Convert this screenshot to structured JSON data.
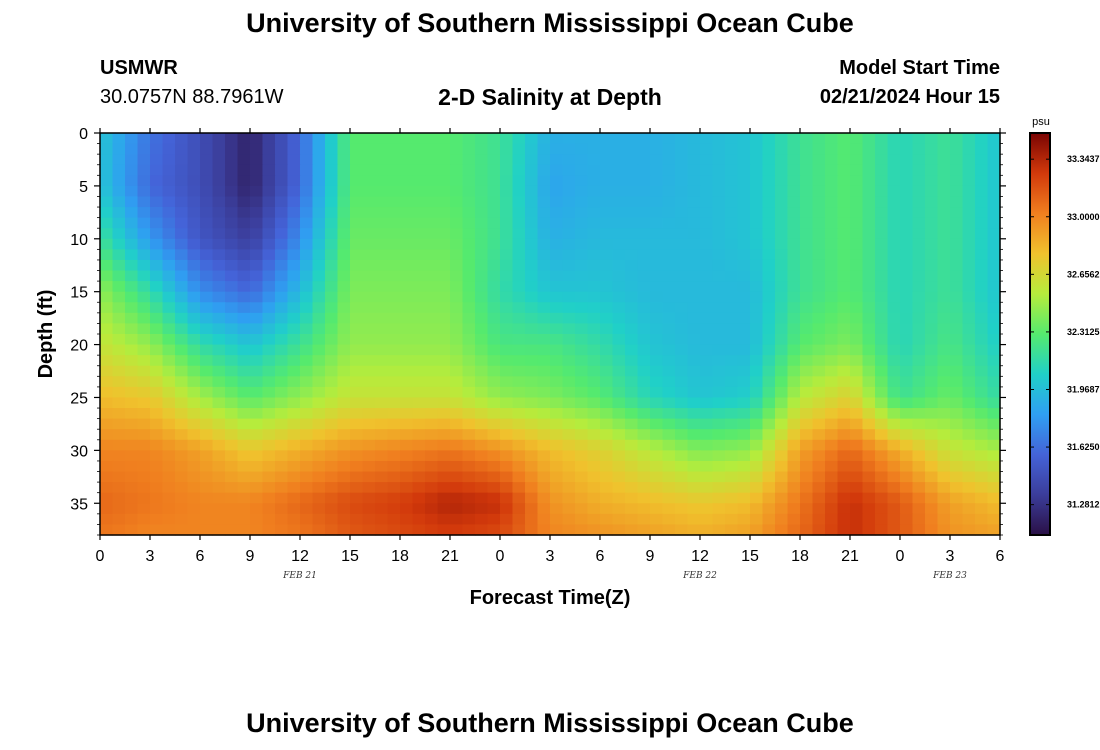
{
  "header": {
    "title_top": "University of Southern Mississippi Ocean Cube",
    "station": "USMWR",
    "coords": "30.0757N  88.7961W",
    "plot_title": "2-D Salinity at Depth",
    "model_start_label": "Model Start Time",
    "model_start_value": "02/21/2024 Hour 15",
    "title_bottom": "University of Southern Mississippi Ocean Cube"
  },
  "chart_data": {
    "type": "heatmap",
    "title": "2-D Salinity at Depth",
    "xlabel": "Forecast Time(Z)",
    "ylabel": "Depth (ft)",
    "x_tick_labels": [
      "0",
      "3",
      "6",
      "9",
      "12",
      "15",
      "18",
      "21",
      "0",
      "3",
      "6",
      "9",
      "12",
      "15",
      "18",
      "21",
      "0",
      "3",
      "6"
    ],
    "x_range_hours": [
      0,
      54
    ],
    "date_labels": [
      {
        "text": "FEB 21",
        "hour": 12
      },
      {
        "text": "FEB 22",
        "hour": 36
      },
      {
        "text": "FEB 23",
        "hour": 51
      }
    ],
    "y_ticks": [
      0,
      5,
      10,
      15,
      20,
      25,
      30,
      35
    ],
    "y_range": [
      0,
      38
    ],
    "y_inverted": true,
    "colorbar": {
      "unit": "psu",
      "min": 31.1,
      "max": 33.5,
      "tick_labels": [
        "33.3437",
        "33.0000",
        "32.6562",
        "32.3125",
        "31.9687",
        "31.6250",
        "31.2812"
      ],
      "tick_values": [
        33.3437,
        33.0,
        32.6562,
        32.3125,
        31.9687,
        31.625,
        31.2812
      ]
    },
    "grid": false,
    "colors": {
      "stops": [
        "#2a1046",
        "#3b3d9a",
        "#4463d8",
        "#2f9ff2",
        "#20d0c8",
        "#55ea6e",
        "#b6ec3c",
        "#f0c22d",
        "#f07f1f",
        "#d2390b",
        "#7a0403"
      ]
    },
    "hours": [
      0,
      3,
      6,
      9,
      12,
      15,
      18,
      21,
      24,
      27,
      30,
      33,
      36,
      39,
      42,
      45,
      48,
      51,
      54
    ],
    "depths": [
      0,
      5,
      10,
      15,
      20,
      25,
      30,
      35,
      38
    ],
    "values": [
      [
        32.0,
        31.65,
        31.45,
        31.2,
        31.6,
        32.3,
        32.3,
        32.3,
        32.2,
        31.9,
        31.9,
        31.9,
        31.95,
        32.0,
        32.2,
        32.3,
        32.1,
        32.2,
        32.0
      ],
      [
        32.0,
        31.6,
        31.45,
        31.2,
        31.6,
        32.3,
        32.3,
        32.3,
        32.2,
        31.85,
        31.9,
        31.9,
        31.95,
        32.0,
        32.2,
        32.3,
        32.1,
        32.2,
        32.0
      ],
      [
        32.2,
        31.8,
        31.5,
        31.35,
        31.75,
        32.35,
        32.35,
        32.35,
        32.2,
        31.9,
        31.95,
        31.95,
        31.95,
        32.0,
        32.2,
        32.3,
        32.1,
        32.2,
        32.0
      ],
      [
        32.45,
        32.15,
        31.75,
        31.6,
        31.95,
        32.4,
        32.4,
        32.4,
        32.15,
        32.0,
        32.0,
        31.95,
        31.95,
        31.95,
        32.2,
        32.3,
        32.1,
        32.2,
        32.0
      ],
      [
        32.6,
        32.45,
        32.15,
        32.0,
        32.2,
        32.45,
        32.45,
        32.45,
        32.25,
        32.25,
        32.15,
        32.0,
        31.95,
        31.95,
        32.3,
        32.4,
        32.1,
        32.25,
        32.05
      ],
      [
        32.8,
        32.75,
        32.5,
        32.3,
        32.45,
        32.6,
        32.6,
        32.6,
        32.45,
        32.4,
        32.3,
        32.1,
        32.0,
        32.05,
        32.55,
        32.7,
        32.2,
        32.35,
        32.15
      ],
      [
        33.0,
        33.0,
        32.9,
        32.75,
        32.85,
        32.95,
        33.0,
        33.05,
        32.95,
        32.8,
        32.7,
        32.55,
        32.4,
        32.45,
        32.9,
        33.1,
        32.85,
        32.6,
        32.5
      ],
      [
        33.1,
        33.05,
        33.0,
        33.0,
        33.1,
        33.2,
        33.25,
        33.35,
        33.3,
        32.95,
        32.85,
        32.8,
        32.75,
        32.8,
        33.05,
        33.3,
        33.15,
        32.9,
        32.8
      ],
      [
        33.05,
        33.0,
        33.0,
        33.0,
        33.05,
        33.15,
        33.2,
        33.25,
        33.2,
        33.0,
        32.95,
        32.9,
        32.85,
        32.9,
        33.1,
        33.3,
        33.15,
        32.95,
        32.9
      ]
    ]
  }
}
